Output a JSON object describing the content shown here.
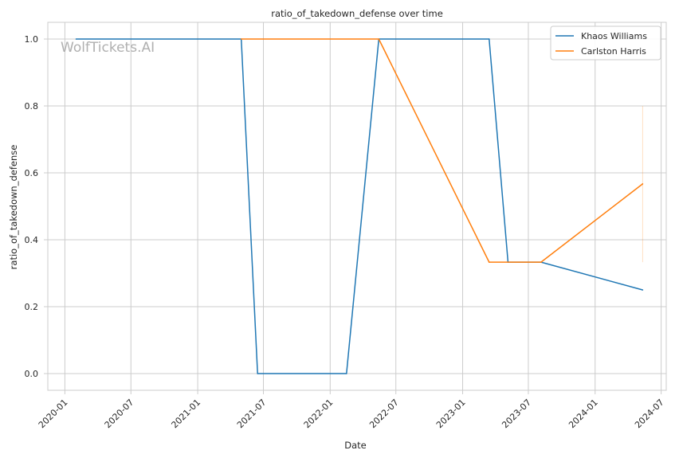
{
  "chart_data": {
    "type": "line",
    "title": "ratio_of_takedown_defense over time",
    "xlabel": "Date",
    "ylabel": "ratio_of_takedown_defense",
    "watermark": "WolfTickets.AI",
    "grid": true,
    "legend_position": "top-right",
    "x_ticks": [
      "2020-01",
      "2020-07",
      "2021-01",
      "2021-07",
      "2022-01",
      "2022-07",
      "2023-01",
      "2023-07",
      "2024-01",
      "2024-07"
    ],
    "y_ticks": [
      "0.0",
      "0.2",
      "0.4",
      "0.6",
      "0.8",
      "1.0"
    ],
    "xlim": [
      "2019-11-15",
      "2024-07-15"
    ],
    "ylim": [
      -0.05,
      1.05
    ],
    "series": [
      {
        "name": "Khaos Williams",
        "color": "#1f77b4",
        "points": [
          {
            "x": "2020-02-01",
            "y": 1.0
          },
          {
            "x": "2021-05-01",
            "y": 1.0
          },
          {
            "x": "2021-06-15",
            "y": 0.0
          },
          {
            "x": "2022-02-15",
            "y": 0.0
          },
          {
            "x": "2022-05-15",
            "y": 1.0
          },
          {
            "x": "2023-03-15",
            "y": 1.0
          },
          {
            "x": "2023-05-06",
            "y": 0.333
          },
          {
            "x": "2023-08-05",
            "y": 0.333
          },
          {
            "x": "2024-05-11",
            "y": 0.25
          }
        ]
      },
      {
        "name": "Carlston Harris",
        "color": "#ff7f0e",
        "points": [
          {
            "x": "2021-05-01",
            "y": 1.0
          },
          {
            "x": "2022-05-15",
            "y": 1.0
          },
          {
            "x": "2023-03-15",
            "y": 0.333
          },
          {
            "x": "2023-08-05",
            "y": 0.333
          },
          {
            "x": "2024-05-11",
            "y": 0.567
          }
        ]
      }
    ]
  }
}
